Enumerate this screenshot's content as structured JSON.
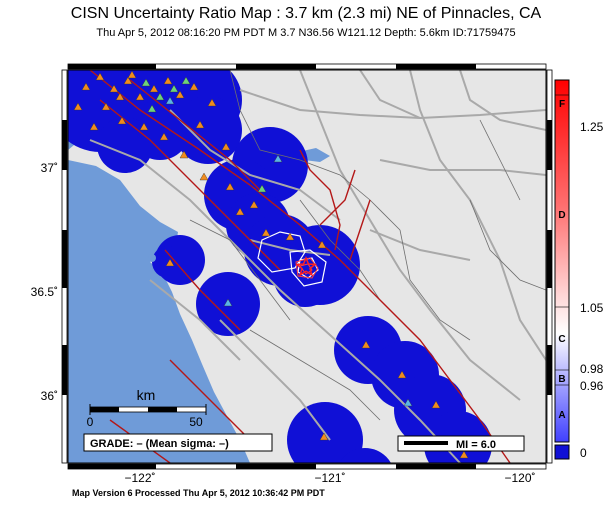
{
  "header": {
    "title": "CISN Uncertainty Ratio Map : 3.7 km (2.3 mi) NE of Pinnacles, CA",
    "subtitle": "Thu Apr  5, 2012 08:16:20 PM PDT    M 3.7    N36.56 W121.12    Depth: 5.6km    ID:71759475"
  },
  "footer": {
    "text": "Map Version 6 Processed Thu Apr  5, 2012 10:36:42 PM PDT"
  },
  "map": {
    "lat_labels": [
      "37˚",
      "36.5˚",
      "36˚"
    ],
    "lon_labels": [
      "−122˚",
      "−121˚",
      "−120˚"
    ],
    "colors": {
      "ocean": "#6f9bd8",
      "land": "#e6e6e6",
      "uncertainty": "#1010d6",
      "roads": "#a9a9a9",
      "faults": "#b41818",
      "county": "#6e6e6e",
      "station_triangle": "#f08c1e",
      "station_triangle_green": "#6ed27a",
      "station_triangle_blue": "#5ab4e6"
    },
    "scale_bar": {
      "unit": "km",
      "labels": [
        "0",
        "50"
      ]
    },
    "grade_box": {
      "text": "GRADE: – (Mean sigma: –)"
    },
    "mi_box": {
      "text": "MI = 6.0"
    },
    "epicenter_icon": "star-icon"
  },
  "colorbar": {
    "grades": [
      "F",
      "D",
      "C",
      "B",
      "A"
    ],
    "value_labels": [
      "1.25",
      "1.05",
      "0.98",
      "0.96",
      "0"
    ]
  }
}
